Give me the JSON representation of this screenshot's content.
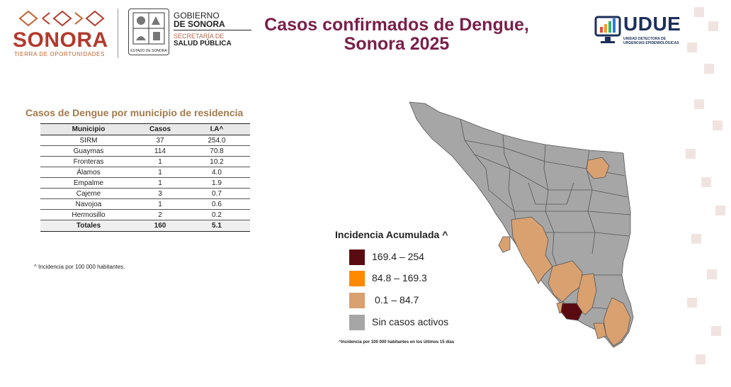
{
  "header": {
    "sonora_logo": {
      "word": "SONORA",
      "tagline": "TIERRA DE OPORTUNIDADES"
    },
    "seal_caption": "ESTADO DE SONORA",
    "gov": {
      "line1": "GOBIERNO",
      "line2": "DE SONORA",
      "line3": "SECRETARÍA DE",
      "line4": "SALUD PÚBLICA"
    },
    "title_line1": "Casos confirmados de Dengue,",
    "title_line2": "Sonora 2025",
    "udue": {
      "word": "UDUE",
      "sub1": "UNIDAD DETECTORA DE",
      "sub2": "URGENCIAS EPIDEMIOLÓGICAS"
    }
  },
  "table": {
    "title": "Casos de Dengue por municipio de residencia",
    "columns": [
      "Municipio",
      "Casos",
      "I.A^"
    ],
    "rows": [
      {
        "municipio": "SIRM",
        "casos": "37",
        "ia": "254.0"
      },
      {
        "municipio": "Guaymas",
        "casos": "114",
        "ia": "70.8"
      },
      {
        "municipio": "Fronteras",
        "casos": "1",
        "ia": "10.2"
      },
      {
        "municipio": "Álamos",
        "casos": "1",
        "ia": "4.0"
      },
      {
        "municipio": "Empalme",
        "casos": "1",
        "ia": "1.9"
      },
      {
        "municipio": "Cajeme",
        "casos": "3",
        "ia": "0.7"
      },
      {
        "municipio": "Navojoa",
        "casos": "1",
        "ia": "0.6"
      },
      {
        "municipio": "Hermosillo",
        "casos": "2",
        "ia": "0.2"
      }
    ],
    "total": {
      "label": "Totales",
      "casos": "160",
      "ia": "5.1"
    },
    "footnote": "^ Incidencia por 100 000 habitantes."
  },
  "legend": {
    "title": "Incidencia Acumulada ^",
    "items": [
      {
        "label": "169.4 – 254",
        "color": "#5a0b12"
      },
      {
        "label": "84.8 – 169.3",
        "color": "#ff8a00"
      },
      {
        "label": "0.1 – 84.7",
        "color": "#d9a070"
      },
      {
        "label": "Sin casos activos",
        "color": "#a6a6a6"
      }
    ],
    "footnote": "^Incidencia por 100 000 habitantes en los últimos 15 días"
  },
  "map_colors": {
    "gray": "#a6a6a6",
    "tan": "#d9a070",
    "dark": "#5a0b12",
    "border": "#555555"
  }
}
